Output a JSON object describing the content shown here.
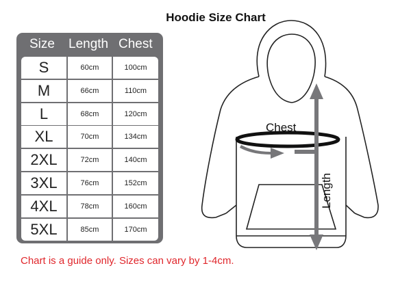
{
  "title": "Hoodie Size Chart",
  "table": {
    "headers": [
      "Size",
      "Length",
      "Chest"
    ],
    "rows": [
      [
        "S",
        "60cm",
        "100cm"
      ],
      [
        "M",
        "66cm",
        "110cm"
      ],
      [
        "L",
        "68cm",
        "120cm"
      ],
      [
        "XL",
        "70cm",
        "134cm"
      ],
      [
        "2XL",
        "72cm",
        "140cm"
      ],
      [
        "3XL",
        "76cm",
        "152cm"
      ],
      [
        "4XL",
        "78cm",
        "160cm"
      ],
      [
        "5XL",
        "85cm",
        "170cm"
      ]
    ]
  },
  "diagram": {
    "chest_label": "Chest",
    "length_label": "Length"
  },
  "note": "Chart is a guide only. Sizes can vary by 1-4cm.",
  "colors": {
    "table_frame": "#6f6f72",
    "arrow": "#77777a",
    "note": "#e0262b"
  }
}
